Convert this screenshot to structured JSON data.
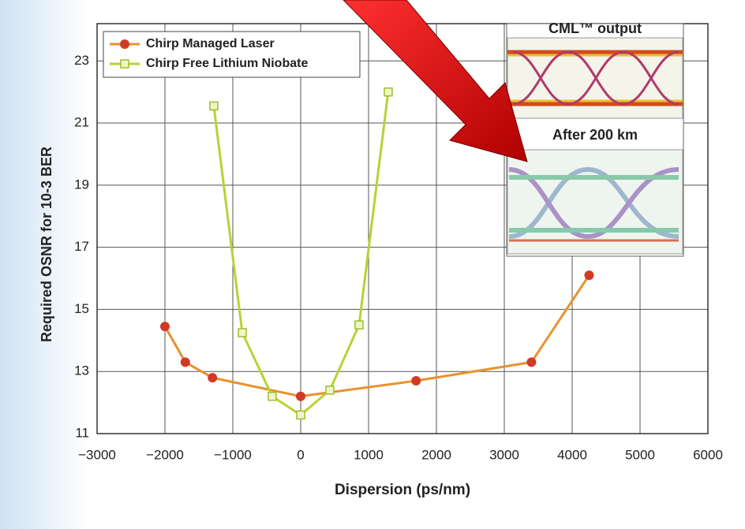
{
  "chart_data": {
    "type": "line",
    "xlabel": "Dispersion (ps/nm)",
    "ylabel": "Required OSNR for 10-3 BER",
    "xlim": [
      -3000,
      6000
    ],
    "ylim": [
      11,
      24.2
    ],
    "xticks": [
      {
        "value": -3000,
        "label": "−3000"
      },
      {
        "value": -2000,
        "label": "−2000"
      },
      {
        "value": -1000,
        "label": "−1000"
      },
      0,
      1000,
      2000,
      3000,
      4000,
      5000,
      6000
    ],
    "yticks": [
      11,
      13,
      15,
      17,
      19,
      21,
      23
    ],
    "grid": true,
    "legend": "top-left",
    "annotations": [
      "CML™ output",
      "After 200 km"
    ],
    "series": [
      {
        "name": "Chirp Managed Laser",
        "color": "#e8922c",
        "marker_color": "#d23a26",
        "marker": "circle",
        "x": [
          -2000,
          -1700,
          -1300,
          0,
          1700,
          3400,
          4250
        ],
        "values": [
          14.45,
          13.3,
          12.8,
          12.2,
          12.7,
          13.3,
          16.1
        ]
      },
      {
        "name": "Chirp Free Lithium Niobate",
        "color": "#b8d234",
        "marker_color": "#9dbf2a",
        "marker": "square",
        "x": [
          -1280,
          -860,
          -420,
          0,
          430,
          860,
          1290
        ],
        "values": [
          21.55,
          14.25,
          12.2,
          11.6,
          12.4,
          14.5,
          22.0
        ]
      }
    ]
  }
}
